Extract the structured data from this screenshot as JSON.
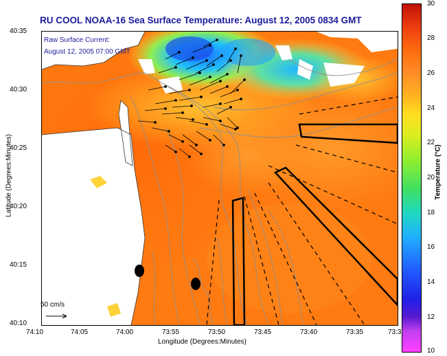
{
  "title": "RU COOL  NOAA-16  Sea Surface Temperature:  August 12, 2005 0834 GMT",
  "legend": {
    "line1": "Raw Surface Current:",
    "line2": "August 12, 2005 07:00 GMT"
  },
  "scale_label": "50 cm/s",
  "axes": {
    "xlabel": "Longitude (Degrees:Minutes)",
    "ylabel": "Latitude (Degrees:Minutes)",
    "xticks": [
      "74:10",
      "74:05",
      "74:00",
      "73:55",
      "73:50",
      "73:45",
      "73:40",
      "73:35",
      "73:3"
    ],
    "yticks": [
      "40:35",
      "40:30",
      "40:25",
      "40:20",
      "40:15",
      "40:10"
    ]
  },
  "colorbar": {
    "label": "Temperature (°C)",
    "ticks": [
      "30",
      "28",
      "26",
      "24",
      "22",
      "20",
      "18",
      "16",
      "14",
      "12",
      "10"
    ],
    "min": 10,
    "max": 30
  },
  "colors": {
    "title": "#1a1a9c",
    "land": "#ffffff",
    "warm_water": "#ff7a10",
    "cool_water": "#20a0ff"
  }
}
